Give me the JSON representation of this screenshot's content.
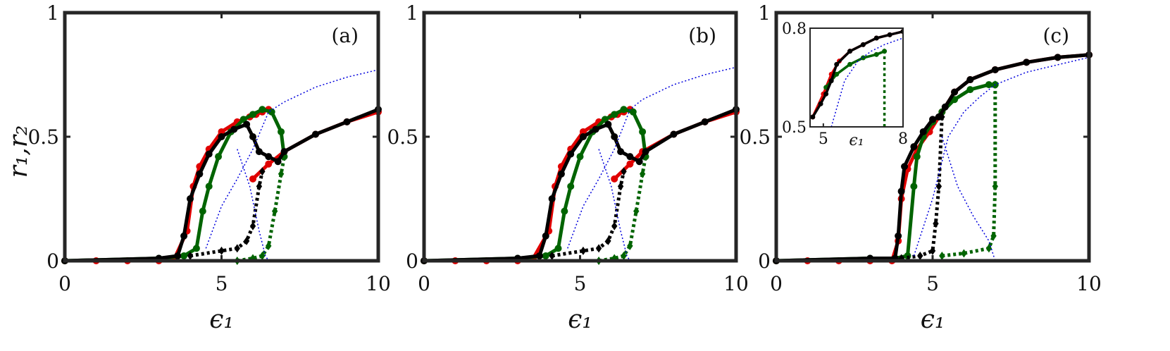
{
  "chart_data": [
    {
      "type": "line",
      "panel_label": "(a)",
      "xlabel": "ϵ₁",
      "ylabel": "r₁,r₂",
      "xlim": [
        0,
        10
      ],
      "ylim": [
        0,
        1
      ],
      "xticks": [
        "0",
        "5",
        "10"
      ],
      "yticks": [
        "0",
        "0.5",
        "1"
      ],
      "series": [
        {
          "color": "#e00000",
          "style": "solid-marker",
          "x": [
            0,
            1,
            2,
            3,
            3.5,
            3.9,
            4.1,
            4.3,
            4.6,
            5.0,
            5.5,
            5.9,
            6.1,
            6.3,
            6.5
          ],
          "y": [
            0,
            0,
            0,
            0,
            0.01,
            0.12,
            0.3,
            0.38,
            0.45,
            0.52,
            0.56,
            0.58,
            0.59,
            0.6,
            0.61
          ]
        },
        {
          "color": "#e00000",
          "style": "solid-marker",
          "x": [
            6.0,
            6.5,
            7,
            8,
            9,
            10
          ],
          "y": [
            0.33,
            0.39,
            0.44,
            0.51,
            0.56,
            0.6
          ]
        },
        {
          "color": "#e00000",
          "style": "flat",
          "x": [
            0,
            6.5
          ],
          "y": [
            0,
            0
          ]
        },
        {
          "color": "#006400",
          "style": "solid-marker",
          "x": [
            0,
            3,
            3.8,
            4.2,
            4.4,
            4.6,
            4.9,
            5.3,
            5.7,
            6.0,
            6.3,
            6.6,
            6.9,
            7.0
          ],
          "y": [
            0,
            0.01,
            0.02,
            0.05,
            0.2,
            0.3,
            0.42,
            0.52,
            0.57,
            0.59,
            0.61,
            0.6,
            0.52,
            0.42
          ]
        },
        {
          "color": "#006400",
          "style": "dotted-marker",
          "x": [
            5.5,
            6.0,
            6.3,
            6.5,
            6.7,
            6.9,
            7.0
          ],
          "y": [
            0.0,
            0.01,
            0.02,
            0.06,
            0.2,
            0.35,
            0.42
          ]
        },
        {
          "color": "#000000",
          "style": "solid-marker",
          "x": [
            0,
            3,
            3.6,
            3.8,
            4.0,
            4.3,
            4.6,
            5.0,
            5.4,
            5.8,
            6.0,
            6.2,
            6.5,
            6.8,
            7,
            8,
            9,
            10
          ],
          "y": [
            0,
            0.01,
            0.02,
            0.1,
            0.25,
            0.35,
            0.43,
            0.5,
            0.53,
            0.55,
            0.5,
            0.44,
            0.42,
            0.4,
            0.44,
            0.51,
            0.56,
            0.61
          ]
        },
        {
          "color": "#000000",
          "style": "dotted-marker",
          "x": [
            4,
            5,
            5.5,
            5.8,
            6.0,
            6.2,
            6.3
          ],
          "y": [
            0.02,
            0.04,
            0.05,
            0.08,
            0.14,
            0.3,
            0.36
          ]
        },
        {
          "color": "#0000dd",
          "style": "thin-dotted",
          "x": [
            4.5,
            5,
            5.5,
            6,
            6.5,
            7,
            8,
            9,
            10
          ],
          "y": [
            0.05,
            0.22,
            0.33,
            0.45,
            0.6,
            0.64,
            0.7,
            0.74,
            0.77
          ]
        },
        {
          "color": "#0000dd",
          "style": "thin-dotted",
          "x": [
            5.5,
            5.9,
            6.2,
            6.4,
            6.5,
            10
          ],
          "y": [
            0.45,
            0.3,
            0.12,
            0.02,
            0.0,
            0.0
          ]
        }
      ]
    },
    {
      "type": "line",
      "panel_label": "(b)",
      "xlabel": "ϵ₁",
      "ylabel": "",
      "xlim": [
        0,
        10
      ],
      "ylim": [
        0,
        1
      ],
      "xticks": [
        "0",
        "5",
        "10"
      ],
      "yticks": [
        "0",
        "0.5",
        "1"
      ],
      "series": [
        {
          "color": "#e00000",
          "style": "solid-marker",
          "x": [
            0,
            1,
            2,
            3,
            3.5,
            4.0,
            4.2,
            4.4,
            4.7,
            5.1,
            5.6,
            6.0,
            6.2,
            6.4,
            6.6
          ],
          "y": [
            0,
            0,
            0,
            0,
            0.01,
            0.12,
            0.3,
            0.38,
            0.45,
            0.52,
            0.56,
            0.58,
            0.59,
            0.6,
            0.61
          ]
        },
        {
          "color": "#e00000",
          "style": "solid-marker",
          "x": [
            6.1,
            6.6,
            7,
            8,
            9,
            10
          ],
          "y": [
            0.33,
            0.39,
            0.44,
            0.51,
            0.56,
            0.6
          ]
        },
        {
          "color": "#e00000",
          "style": "flat",
          "x": [
            0,
            6.6
          ],
          "y": [
            0,
            0
          ]
        },
        {
          "color": "#006400",
          "style": "solid-marker",
          "x": [
            0,
            3,
            3.9,
            4.3,
            4.5,
            4.7,
            5.0,
            5.4,
            5.8,
            6.1,
            6.4,
            6.7,
            7.0,
            7.1
          ],
          "y": [
            0,
            0.01,
            0.02,
            0.05,
            0.2,
            0.3,
            0.42,
            0.52,
            0.57,
            0.59,
            0.61,
            0.6,
            0.52,
            0.42
          ]
        },
        {
          "color": "#006400",
          "style": "dotted-marker",
          "x": [
            5.6,
            6.1,
            6.4,
            6.6,
            6.8,
            7.0,
            7.1
          ],
          "y": [
            0.0,
            0.01,
            0.02,
            0.06,
            0.2,
            0.35,
            0.42
          ]
        },
        {
          "color": "#000000",
          "style": "solid-marker",
          "x": [
            0,
            3,
            3.7,
            3.9,
            4.1,
            4.4,
            4.7,
            5.1,
            5.5,
            5.9,
            6.1,
            6.3,
            6.6,
            6.9,
            7.1,
            8,
            9,
            10
          ],
          "y": [
            0,
            0.01,
            0.02,
            0.1,
            0.25,
            0.35,
            0.43,
            0.5,
            0.53,
            0.55,
            0.5,
            0.44,
            0.42,
            0.4,
            0.44,
            0.51,
            0.56,
            0.61
          ]
        },
        {
          "color": "#000000",
          "style": "dotted-marker",
          "x": [
            4.1,
            5.1,
            5.6,
            5.9,
            6.1,
            6.3,
            6.4
          ],
          "y": [
            0.02,
            0.04,
            0.05,
            0.08,
            0.14,
            0.3,
            0.36
          ]
        },
        {
          "color": "#0000dd",
          "style": "thin-dotted",
          "x": [
            4.6,
            5.1,
            5.6,
            6.1,
            6.6,
            7,
            8,
            9,
            10
          ],
          "y": [
            0.05,
            0.22,
            0.33,
            0.45,
            0.61,
            0.65,
            0.71,
            0.75,
            0.78
          ]
        },
        {
          "color": "#0000dd",
          "style": "thin-dotted",
          "x": [
            5.6,
            6.0,
            6.3,
            6.5,
            6.6,
            10
          ],
          "y": [
            0.45,
            0.3,
            0.12,
            0.02,
            0.0,
            0.0
          ]
        }
      ]
    },
    {
      "type": "line",
      "panel_label": "(c)",
      "xlabel": "ϵ₁",
      "ylabel": "",
      "xlim": [
        0,
        10
      ],
      "ylim": [
        0,
        1
      ],
      "xticks": [
        "0",
        "5",
        "10"
      ],
      "yticks": [
        "0",
        "0.5",
        "1"
      ],
      "series": [
        {
          "color": "#e00000",
          "style": "solid-marker",
          "x": [
            0,
            1,
            2,
            3,
            3.7,
            3.9,
            4.0,
            4.2,
            4.5,
            4.9,
            5.3,
            5.7,
            6.2,
            7,
            8,
            9,
            10
          ],
          "y": [
            0,
            0,
            0,
            0,
            0,
            0.08,
            0.25,
            0.37,
            0.45,
            0.52,
            0.6,
            0.68,
            0.73,
            0.77,
            0.8,
            0.82,
            0.83
          ]
        },
        {
          "color": "#006400",
          "style": "solid-marker",
          "x": [
            0,
            3,
            3.8,
            4.2,
            4.4,
            4.5,
            4.7,
            5.0,
            5.3,
            5.7,
            6.2,
            6.8,
            7.0
          ],
          "y": [
            0,
            0.01,
            0.01,
            0.02,
            0.3,
            0.42,
            0.5,
            0.56,
            0.6,
            0.65,
            0.69,
            0.71,
            0.71
          ]
        },
        {
          "color": "#006400",
          "style": "dotted-marker",
          "x": [
            5.3,
            6.0,
            6.8,
            6.95,
            7.0,
            7.0
          ],
          "y": [
            0.02,
            0.03,
            0.05,
            0.1,
            0.3,
            0.71
          ]
        },
        {
          "color": "#000000",
          "style": "solid-marker",
          "x": [
            0,
            3,
            3.8,
            3.9,
            4.0,
            4.1,
            4.4,
            4.7,
            5.0,
            5.2,
            5.4,
            5.7,
            6.2,
            7,
            8,
            9,
            10
          ],
          "y": [
            0,
            0.01,
            0.01,
            0.1,
            0.28,
            0.38,
            0.46,
            0.52,
            0.57,
            0.58,
            0.62,
            0.68,
            0.73,
            0.77,
            0.8,
            0.82,
            0.83
          ]
        },
        {
          "color": "#000000",
          "style": "dotted-marker",
          "x": [
            4.0,
            4.6,
            5.0,
            5.1,
            5.2,
            5.3
          ],
          "y": [
            0.01,
            0.02,
            0.04,
            0.15,
            0.3,
            0.58
          ]
        },
        {
          "color": "#0000dd",
          "style": "thin-dotted",
          "x": [
            4.4,
            5.0,
            5.5,
            6.0,
            6.5,
            7,
            8,
            9,
            10
          ],
          "y": [
            0.02,
            0.25,
            0.5,
            0.6,
            0.66,
            0.71,
            0.76,
            0.79,
            0.82
          ]
        },
        {
          "color": "#0000dd",
          "style": "thin-dotted",
          "x": [
            5.3,
            5.8,
            6.3,
            6.8,
            7.0,
            10
          ],
          "y": [
            0.5,
            0.3,
            0.18,
            0.08,
            0.0,
            0.0
          ]
        }
      ],
      "inset": {
        "xlim": [
          4.5,
          8
        ],
        "ylim": [
          0.5,
          0.8
        ],
        "xticks": [
          "5",
          "8"
        ],
        "yticks": [
          "0.5",
          "0.8"
        ],
        "xlabel": "ϵ₁",
        "series": [
          {
            "color": "#e00000",
            "style": "solid-marker",
            "x": [
              4.6,
              5.0,
              5.3,
              5.6,
              6.0,
              6.5,
              7.0,
              7.5,
              8.0
            ],
            "y": [
              0.53,
              0.6,
              0.66,
              0.7,
              0.73,
              0.75,
              0.77,
              0.78,
              0.79
            ]
          },
          {
            "color": "#006400",
            "style": "solid-marker",
            "x": [
              5.1,
              5.5,
              6.0,
              6.5,
              7.0,
              7.3
            ],
            "y": [
              0.62,
              0.66,
              0.69,
              0.71,
              0.72,
              0.73
            ]
          },
          {
            "color": "#006400",
            "style": "dotted-marker",
            "x": [
              7.3,
              7.3
            ],
            "y": [
              0.5,
              0.73
            ]
          },
          {
            "color": "#000000",
            "style": "solid-marker",
            "x": [
              4.6,
              4.9,
              5.1,
              5.3,
              5.5,
              6.0,
              6.5,
              7.0,
              7.5,
              8.0
            ],
            "y": [
              0.53,
              0.57,
              0.6,
              0.64,
              0.69,
              0.73,
              0.75,
              0.77,
              0.78,
              0.79
            ]
          },
          {
            "color": "#0000dd",
            "style": "thin-dotted",
            "x": [
              5.3,
              5.8,
              6.3,
              6.8,
              7.3,
              8.0
            ],
            "y": [
              0.5,
              0.64,
              0.7,
              0.73,
              0.75,
              0.77
            ]
          }
        ]
      }
    }
  ]
}
